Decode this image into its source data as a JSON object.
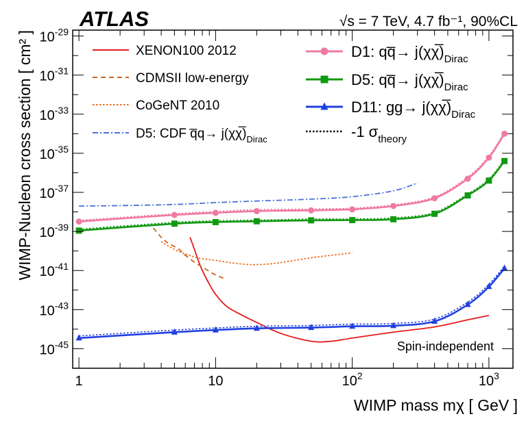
{
  "chart_data": {
    "type": "line",
    "experiment": "ATLAS",
    "conditions": "√s = 7 TeV, 4.7 fb⁻¹, 90%CL",
    "annotation": "Spin-independent",
    "xlabel": "WIMP mass mχ [ GeV ]",
    "ylabel": "WIMP-Nucleon cross section [ cm² ]",
    "xscale": "log",
    "yscale": "log",
    "xlim": [
      0.9,
      1500
    ],
    "ylim": [
      1e-46,
      2e-29
    ],
    "x_ticks": [
      {
        "value": 1,
        "base": "1",
        "exp": ""
      },
      {
        "value": 10,
        "base": "10",
        "exp": ""
      },
      {
        "value": 100,
        "base": "10",
        "exp": "2"
      },
      {
        "value": 1000,
        "base": "10",
        "exp": "3"
      }
    ],
    "y_ticks": [
      {
        "value": 1e-29,
        "base": "10",
        "exp": "-29"
      },
      {
        "value": 1e-31,
        "base": "10",
        "exp": "-31"
      },
      {
        "value": 1e-33,
        "base": "10",
        "exp": "-33"
      },
      {
        "value": 1e-35,
        "base": "10",
        "exp": "-35"
      },
      {
        "value": 1e-37,
        "base": "10",
        "exp": "-37"
      },
      {
        "value": 1e-39,
        "base": "10",
        "exp": "-39"
      },
      {
        "value": 1e-41,
        "base": "10",
        "exp": "-41"
      },
      {
        "value": 1e-43,
        "base": "10",
        "exp": "-43"
      },
      {
        "value": 1e-45,
        "base": "10",
        "exp": "-45"
      }
    ],
    "legend_left": {
      "placement": "top-left",
      "entries": [
        {
          "label": "XENON100 2012",
          "color": "#e41a1c",
          "style": "solid"
        },
        {
          "label": "CDMSII low-energy",
          "color": "#c8641e",
          "style": "dashed"
        },
        {
          "label": "CoGeNT 2010",
          "color": "#ee6a1a",
          "style": "dotted"
        },
        {
          "label": "D5: CDF q̅q→ j(χχ̅)",
          "sub": "Dirac",
          "color": "#4a70d8",
          "style": "dashdot"
        }
      ]
    },
    "legend_right": {
      "placement": "top-right",
      "entries": [
        {
          "label": "D1: qq̅→ j(χχ̅)",
          "sub": "Dirac",
          "color": "#f07aa0",
          "marker": "circle"
        },
        {
          "label": "D5: qq̅→ j(χχ̅)",
          "sub": "Dirac",
          "color": "#119911",
          "marker": "square"
        },
        {
          "label": "D11: gg→ j(χχ̅)",
          "sub": "Dirac",
          "color": "#1f3fe0",
          "marker": "triangle"
        },
        {
          "label": "-1 σ",
          "sub": "theory",
          "color": "#000000",
          "style": "dotted"
        }
      ]
    },
    "series": [
      {
        "name": "XENON100 2012",
        "color": "#e41a1c",
        "style": "solid",
        "x": [
          6.5,
          7,
          7.5,
          8,
          9,
          10,
          12,
          15,
          20,
          30,
          50,
          70,
          100,
          200,
          400,
          700,
          1000
        ],
        "y": [
          5e-40,
          1.2e-40,
          3e-41,
          1e-41,
          2e-42,
          6e-43,
          1.5e-43,
          6e-44,
          2.2e-44,
          6e-45,
          2.4e-45,
          2.4e-45,
          3.5e-45,
          7e-45,
          1.3e-44,
          3e-44,
          5e-44
        ]
      },
      {
        "name": "CDMSII low-energy",
        "color": "#c8641e",
        "style": "dashed",
        "x": [
          3.5,
          4,
          4.5,
          5,
          5.5,
          6,
          7,
          8,
          9,
          10,
          12
        ],
        "y": [
          1.5e-39,
          5e-40,
          2.5e-40,
          1.7e-40,
          1.1e-40,
          6e-41,
          2.7e-41,
          1.5e-41,
          9e-42,
          6e-42,
          3.5e-42
        ]
      },
      {
        "name": "CoGeNT 2010",
        "color": "#ee6a1a",
        "style": "dotted",
        "x": [
          4,
          5,
          6,
          7,
          8,
          10,
          13,
          18,
          25,
          35,
          50,
          70,
          100
        ],
        "y": [
          3e-40,
          1.2e-40,
          7e-41,
          5e-41,
          4e-41,
          3.3e-41,
          2.5e-41,
          2e-41,
          2.2e-41,
          3e-41,
          4.5e-41,
          6e-41,
          8e-41
        ]
      },
      {
        "name": "D5: CDF",
        "color": "#4a70d8",
        "style": "dashdot",
        "x": [
          1,
          2,
          5,
          10,
          20,
          50,
          100,
          200,
          300
        ],
        "y": [
          2e-38,
          2.1e-38,
          2.4e-38,
          3e-38,
          3.6e-38,
          4.5e-38,
          6e-38,
          1.2e-37,
          3e-37
        ]
      },
      {
        "name": "D1",
        "color": "#f07aa0",
        "style": "solid",
        "marker": "circle",
        "x": [
          1,
          5,
          10,
          20,
          50,
          100,
          200,
          400,
          700,
          1000,
          1300
        ],
        "y": [
          3.2e-39,
          7e-39,
          9e-39,
          1.1e-38,
          1.2e-38,
          1.35e-38,
          2e-38,
          5e-38,
          5e-37,
          6e-36,
          1e-34
        ]
      },
      {
        "name": "D5",
        "color": "#119911",
        "style": "solid",
        "marker": "square",
        "x": [
          1,
          5,
          10,
          20,
          50,
          100,
          200,
          400,
          700,
          1000,
          1300
        ],
        "y": [
          1.1e-39,
          2.5e-39,
          3e-39,
          3.3e-39,
          3.7e-39,
          3.8e-39,
          4.2e-39,
          8e-39,
          7e-38,
          4e-37,
          4e-36
        ]
      },
      {
        "name": "D11",
        "color": "#1f3fe0",
        "style": "solid",
        "marker": "triangle",
        "x": [
          1,
          5,
          10,
          20,
          50,
          100,
          200,
          400,
          700,
          1000,
          1300
        ],
        "y": [
          3.5e-45,
          7e-45,
          9e-45,
          1.1e-44,
          1.2e-44,
          1.4e-44,
          1.5e-44,
          2.5e-44,
          1.8e-43,
          1.5e-42,
          1.3e-41
        ]
      },
      {
        "name": "D1 -1 sigma_theory",
        "color": "#f07aa0",
        "style": "dotted",
        "offset_of": "D1",
        "x": [
          1,
          5,
          10,
          20,
          50,
          100,
          200,
          400,
          700,
          1000,
          1300
        ],
        "y": [
          3.7e-39,
          8e-39,
          1.05e-38,
          1.3e-38,
          1.4e-38,
          1.55e-38,
          2.3e-38,
          5.8e-38,
          6e-37,
          7.2e-36,
          1.2e-34
        ]
      },
      {
        "name": "D5 -1 sigma_theory",
        "color": "#119911",
        "style": "dotted",
        "offset_of": "D5",
        "x": [
          1,
          5,
          10,
          20,
          50,
          100,
          200,
          400,
          700,
          1000,
          1300
        ],
        "y": [
          1.3e-39,
          2.9e-39,
          3.5e-39,
          3.8e-39,
          4.3e-39,
          4.4e-39,
          4.9e-39,
          9.4e-39,
          8.2e-38,
          4.8e-37,
          4.8e-36
        ]
      },
      {
        "name": "D11 -1 sigma_theory",
        "color": "#1f3fe0",
        "style": "dotted",
        "offset_of": "D11",
        "x": [
          1,
          5,
          10,
          20,
          50,
          100,
          200,
          400,
          700,
          1000,
          1300
        ],
        "y": [
          4.5e-45,
          9e-45,
          1.15e-44,
          1.4e-44,
          1.55e-44,
          1.8e-44,
          1.95e-44,
          3.3e-44,
          2.4e-43,
          2e-42,
          1.7e-41
        ]
      }
    ]
  }
}
